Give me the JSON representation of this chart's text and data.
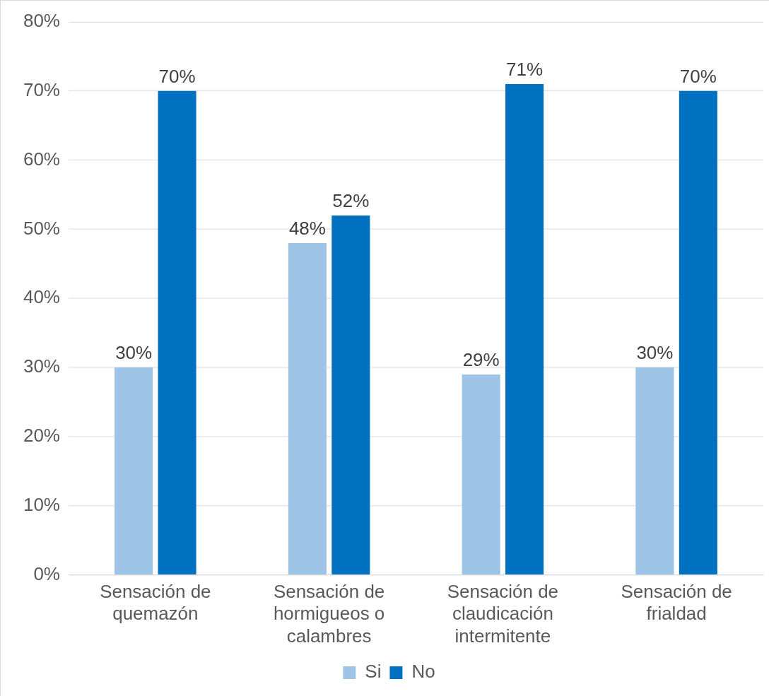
{
  "chart_data": {
    "type": "bar",
    "categories": [
      "Sensación de quemazón",
      "Sensación de hormigueos o calambres",
      "Sensación de claudicación intermitente",
      "Sensación de frialdad"
    ],
    "series": [
      {
        "name": "Si",
        "color": "#9dc3e6",
        "values": [
          30,
          48,
          29,
          30
        ],
        "value_labels": [
          "30%",
          "48%",
          "29%",
          "30%"
        ]
      },
      {
        "name": "No",
        "color": "#0070c0",
        "values": [
          70,
          52,
          71,
          70
        ],
        "value_labels": [
          "70%",
          "52%",
          "71%",
          "70%"
        ]
      }
    ],
    "ylim": [
      0,
      80
    ],
    "yticks": [
      {
        "value": 0,
        "label": "0%"
      },
      {
        "value": 10,
        "label": "10%"
      },
      {
        "value": 20,
        "label": "20%"
      },
      {
        "value": 30,
        "label": "30%"
      },
      {
        "value": 40,
        "label": "40%"
      },
      {
        "value": 50,
        "label": "50%"
      },
      {
        "value": 60,
        "label": "60%"
      },
      {
        "value": 70,
        "label": "70%"
      },
      {
        "value": 80,
        "label": "80%"
      }
    ],
    "grid": "y",
    "legend": "bottom"
  }
}
